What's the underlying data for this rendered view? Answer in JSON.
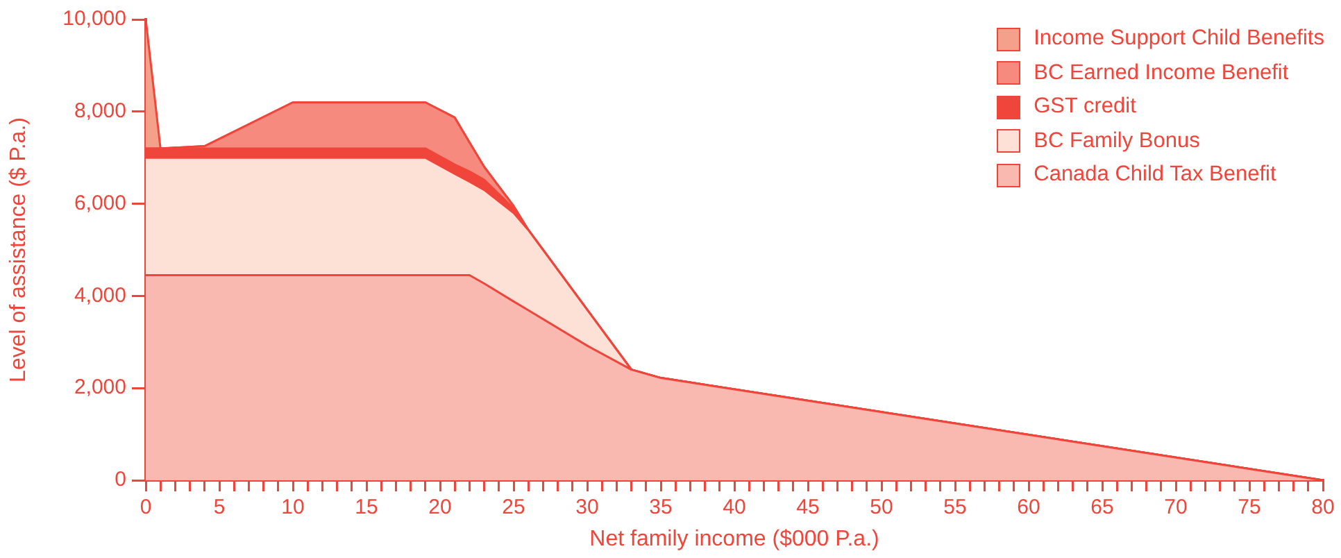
{
  "chart_data": {
    "type": "area",
    "stacked": true,
    "xlabel": "Net family income ($000 P.a.)",
    "ylabel": "Level of assistance ($ P.a.)",
    "x": [
      0,
      1,
      4,
      10,
      19,
      21,
      22,
      23,
      25,
      26,
      30,
      33,
      35,
      80
    ],
    "series": [
      {
        "name": "Canada Child Tax Benefit",
        "color": "#f9b9b0",
        "values": [
          4450,
          4450,
          4450,
          4450,
          4450,
          4450,
          4450,
          4270,
          3880,
          3690,
          2920,
          2400,
          2220,
          0
        ]
      },
      {
        "name": "BC Family Bonus",
        "color": "#fde0d6",
        "values": [
          2550,
          2550,
          2550,
          2550,
          2550,
          2200,
          2030,
          2030,
          1920,
          1740,
          780,
          0,
          0,
          0
        ]
      },
      {
        "name": "GST credit",
        "color": "#f0453a",
        "values": [
          200,
          200,
          200,
          200,
          200,
          200,
          220,
          220,
          100,
          0,
          0,
          0,
          0,
          0
        ]
      },
      {
        "name": "BC Earned Income Benefit",
        "color": "#f78a7e",
        "values": [
          0,
          0,
          50,
          1000,
          1000,
          1020,
          630,
          280,
          50,
          0,
          0,
          0,
          0,
          0
        ]
      },
      {
        "name": "Income Support Child Benefits",
        "color": "#f4a08a",
        "values": [
          2800,
          0,
          0,
          0,
          0,
          0,
          0,
          0,
          0,
          0,
          0,
          0,
          0,
          0
        ]
      }
    ],
    "xlim": [
      0,
      80
    ],
    "ylim": [
      0,
      10000
    ],
    "xticks": [
      0,
      {
        "value": 1,
        "label": null
      },
      {
        "value": 2,
        "label": null
      },
      {
        "value": 3,
        "label": null
      },
      {
        "value": 4,
        "label": null
      },
      5,
      {
        "value": 6,
        "label": null
      },
      {
        "value": 7,
        "label": null
      },
      {
        "value": 8,
        "label": null
      },
      {
        "value": 9,
        "label": null
      },
      10,
      {
        "value": 11,
        "label": null
      },
      {
        "value": 12,
        "label": null
      },
      {
        "value": 13,
        "label": null
      },
      {
        "value": 14,
        "label": null
      },
      15,
      {
        "value": 16,
        "label": null
      },
      {
        "value": 17,
        "label": null
      },
      {
        "value": 18,
        "label": null
      },
      {
        "value": 19,
        "label": null
      },
      20,
      {
        "value": 21,
        "label": null
      },
      {
        "value": 22,
        "label": null
      },
      {
        "value": 23,
        "label": null
      },
      {
        "value": 24,
        "label": null
      },
      25,
      {
        "value": 26,
        "label": null
      },
      {
        "value": 27,
        "label": null
      },
      {
        "value": 28,
        "label": null
      },
      {
        "value": 29,
        "label": null
      },
      30,
      {
        "value": 31,
        "label": null
      },
      {
        "value": 32,
        "label": null
      },
      {
        "value": 33,
        "label": null
      },
      {
        "value": 34,
        "label": null
      },
      35,
      {
        "value": 36,
        "label": null
      },
      {
        "value": 37,
        "label": null
      },
      {
        "value": 38,
        "label": null
      },
      {
        "value": 39,
        "label": null
      },
      40,
      {
        "value": 41,
        "label": null
      },
      {
        "value": 42,
        "label": null
      },
      {
        "value": 43,
        "label": null
      },
      {
        "value": 44,
        "label": null
      },
      45,
      {
        "value": 46,
        "label": null
      },
      {
        "value": 47,
        "label": null
      },
      {
        "value": 48,
        "label": null
      },
      {
        "value": 49,
        "label": null
      },
      50,
      {
        "value": 51,
        "label": null
      },
      {
        "value": 52,
        "label": null
      },
      {
        "value": 53,
        "label": null
      },
      {
        "value": 54,
        "label": null
      },
      55,
      {
        "value": 56,
        "label": null
      },
      {
        "value": 57,
        "label": null
      },
      {
        "value": 58,
        "label": null
      },
      {
        "value": 59,
        "label": null
      },
      60,
      {
        "value": 61,
        "label": null
      },
      {
        "value": 62,
        "label": null
      },
      {
        "value": 63,
        "label": null
      },
      {
        "value": 64,
        "label": null
      },
      65,
      {
        "value": 66,
        "label": null
      },
      {
        "value": 67,
        "label": null
      },
      {
        "value": 68,
        "label": null
      },
      {
        "value": 69,
        "label": null
      },
      70,
      {
        "value": 71,
        "label": null
      },
      {
        "value": 72,
        "label": null
      },
      {
        "value": 73,
        "label": null
      },
      {
        "value": 74,
        "label": null
      },
      75,
      {
        "value": 76,
        "label": null
      },
      {
        "value": 77,
        "label": null
      },
      {
        "value": 78,
        "label": null
      },
      {
        "value": 79,
        "label": null
      },
      80
    ],
    "yticks": [
      0,
      {
        "value": 2000,
        "label": "2,000"
      },
      {
        "value": 4000,
        "label": "4,000"
      },
      {
        "value": 6000,
        "label": "6,000"
      },
      {
        "value": 8000,
        "label": "8,000"
      },
      {
        "value": 10000,
        "label": "10,000"
      }
    ],
    "grid": false,
    "legend": "top right",
    "marker": "none",
    "line_style": "solid"
  }
}
